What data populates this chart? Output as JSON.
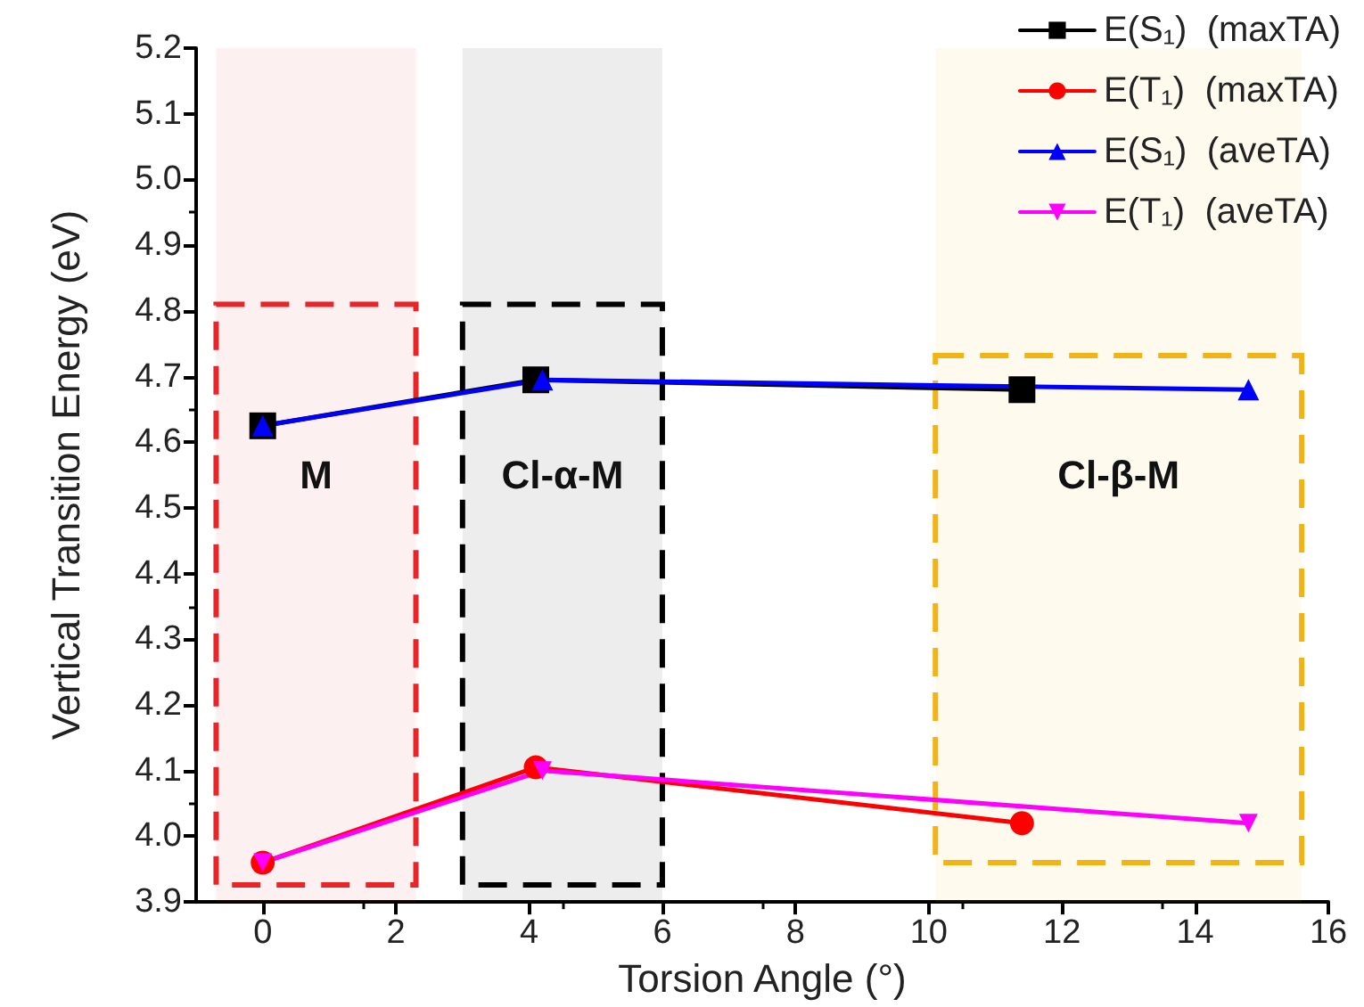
{
  "chart_data": {
    "type": "line",
    "xlabel": "Torsion Angle (°)",
    "ylabel": "Vertical Transition Energy (eV)",
    "xlim": [
      -1,
      16
    ],
    "xticks": [
      0,
      2,
      4,
      6,
      8,
      10,
      12,
      14,
      16
    ],
    "ylim": [
      3.9,
      5.2
    ],
    "yticks": [
      3.9,
      {
        "value": 4,
        "label": "4.0"
      },
      4.1,
      4.2,
      4.3,
      4.4,
      4.5,
      4.6,
      4.7,
      4.8,
      4.9,
      {
        "value": 5,
        "label": "5.0"
      },
      5.1,
      5.2
    ],
    "grid": false,
    "legend": "top right",
    "line_style": "solid",
    "series": [
      {
        "name": "E(S₁)  (maxTA)",
        "color": "#000000",
        "marker": "square",
        "x": [
          0,
          4.1,
          11.4
        ],
        "values": [
          4.625,
          4.695,
          4.68
        ]
      },
      {
        "name": "E(T₁)  (maxTA)",
        "color": "#ff0000",
        "marker": "circle",
        "x": [
          0,
          4.1,
          11.4
        ],
        "values": [
          3.96,
          4.105,
          4.02
        ]
      },
      {
        "name": "E(S₁)  (aveTA)",
        "color": "#0000ff",
        "marker": "triangle",
        "x": [
          0,
          4.2,
          14.8
        ],
        "values": [
          4.625,
          4.695,
          4.68
        ]
      },
      {
        "name": "E(T₁)  (aveTA)",
        "color": "#ff00ff",
        "marker": "triangle-down",
        "x": [
          0,
          4.2,
          14.8
        ],
        "values": [
          3.96,
          4.1,
          4.02
        ]
      }
    ],
    "bands": [
      {
        "axis": "x",
        "from": -0.7,
        "to": 2.3,
        "label": "M",
        "color": "#e8262a"
      },
      {
        "axis": "x",
        "from": 3.0,
        "to": 6.0,
        "label": "Cl-α-M",
        "color": "#000000"
      },
      {
        "axis": "x",
        "from": 10.1,
        "to": 15.6,
        "label": "Cl-β-M",
        "color": "#f2b315"
      }
    ]
  }
}
